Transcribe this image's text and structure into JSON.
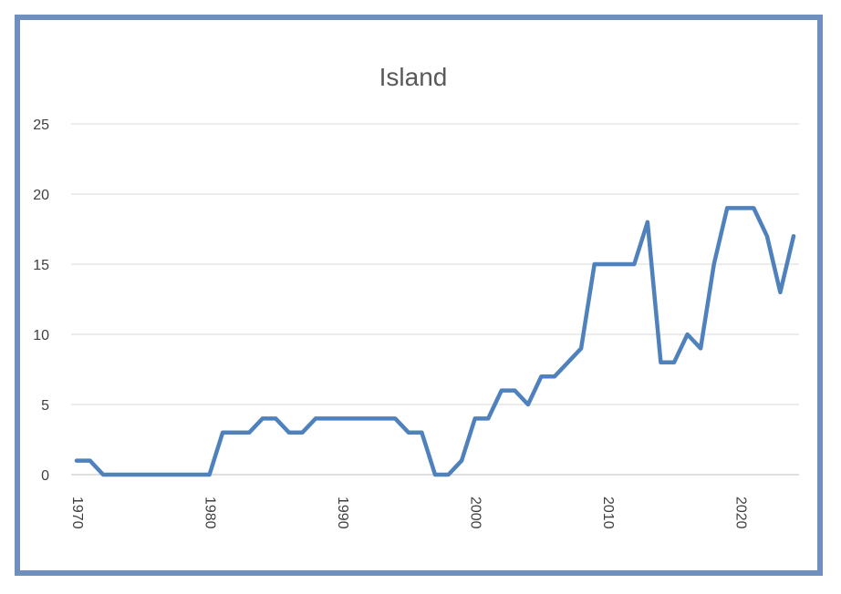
{
  "chart_data": {
    "type": "line",
    "title": "Island",
    "xlabel": "",
    "ylabel": "",
    "xlim": [
      1970,
      2024
    ],
    "ylim": [
      0,
      25
    ],
    "yticks": [
      0,
      5,
      10,
      15,
      20,
      25
    ],
    "xticks": [
      1970,
      1980,
      1990,
      2000,
      2010,
      2020
    ],
    "grid": true,
    "legend": "none",
    "color": "#4f81bd",
    "series": [
      {
        "x": [
          1970,
          1971,
          1972,
          1973,
          1974,
          1975,
          1976,
          1977,
          1978,
          1979,
          1980,
          1981,
          1982,
          1983,
          1984,
          1985,
          1986,
          1987,
          1988,
          1989,
          1990,
          1991,
          1992,
          1993,
          1994,
          1995,
          1996,
          1997,
          1998,
          1999,
          2000,
          2001,
          2002,
          2003,
          2004,
          2005,
          2006,
          2007,
          2008,
          2009,
          2010,
          2011,
          2012,
          2013,
          2014,
          2015,
          2016,
          2017,
          2018,
          2019,
          2020,
          2021,
          2022,
          2023,
          2024
        ],
        "values": [
          1,
          1,
          0,
          0,
          0,
          0,
          0,
          0,
          0,
          0,
          0,
          3,
          3,
          3,
          4,
          4,
          3,
          3,
          4,
          4,
          4,
          4,
          4,
          4,
          4,
          3,
          3,
          0,
          0,
          1,
          4,
          4,
          6,
          6,
          5,
          7,
          7,
          8,
          9,
          15,
          15,
          15,
          15,
          18,
          8,
          8,
          10,
          9,
          15,
          19,
          19,
          19,
          17,
          13,
          17
        ]
      }
    ]
  }
}
